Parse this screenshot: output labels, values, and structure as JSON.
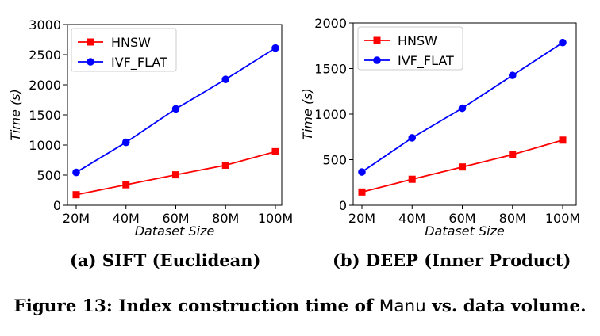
{
  "chart_data": [
    {
      "type": "line",
      "categories": [
        "20M",
        "40M",
        "60M",
        "80M",
        "100M"
      ],
      "xlabel": "Dataset Size",
      "ylabel": "Time (s)",
      "ylim": [
        0,
        3000
      ],
      "yticks": [
        0,
        500,
        1000,
        1500,
        2000,
        2500,
        3000
      ],
      "legend": "top-left",
      "grid": false,
      "series": [
        {
          "name": "HNSW",
          "color": "#ff0000",
          "marker": "square",
          "values": [
            175,
            340,
            505,
            665,
            890
          ]
        },
        {
          "name": "IVF_FLAT",
          "color": "#0000ff",
          "marker": "circle",
          "values": [
            545,
            1045,
            1600,
            2090,
            2610
          ]
        }
      ]
    },
    {
      "type": "line",
      "categories": [
        "20M",
        "40M",
        "60M",
        "80M",
        "100M"
      ],
      "xlabel": "Dataset Size",
      "ylabel": "Time (s)",
      "ylim": [
        0,
        2000
      ],
      "yticks": [
        0,
        500,
        1000,
        1500,
        2000
      ],
      "legend": "top-left",
      "grid": false,
      "series": [
        {
          "name": "HNSW",
          "color": "#ff0000",
          "marker": "square",
          "values": [
            145,
            285,
            420,
            555,
            715
          ]
        },
        {
          "name": "IVF_FLAT",
          "color": "#0000ff",
          "marker": "circle",
          "values": [
            365,
            740,
            1065,
            1425,
            1785
          ]
        }
      ]
    }
  ],
  "captions": {
    "a": "(a) SIFT (Euclidean)",
    "b": "(b) DEEP (Inner Product)",
    "figure_prefix": "Figure 13: Index construction time of ",
    "figure_system": "Manu",
    "figure_suffix": " vs. data volume."
  }
}
